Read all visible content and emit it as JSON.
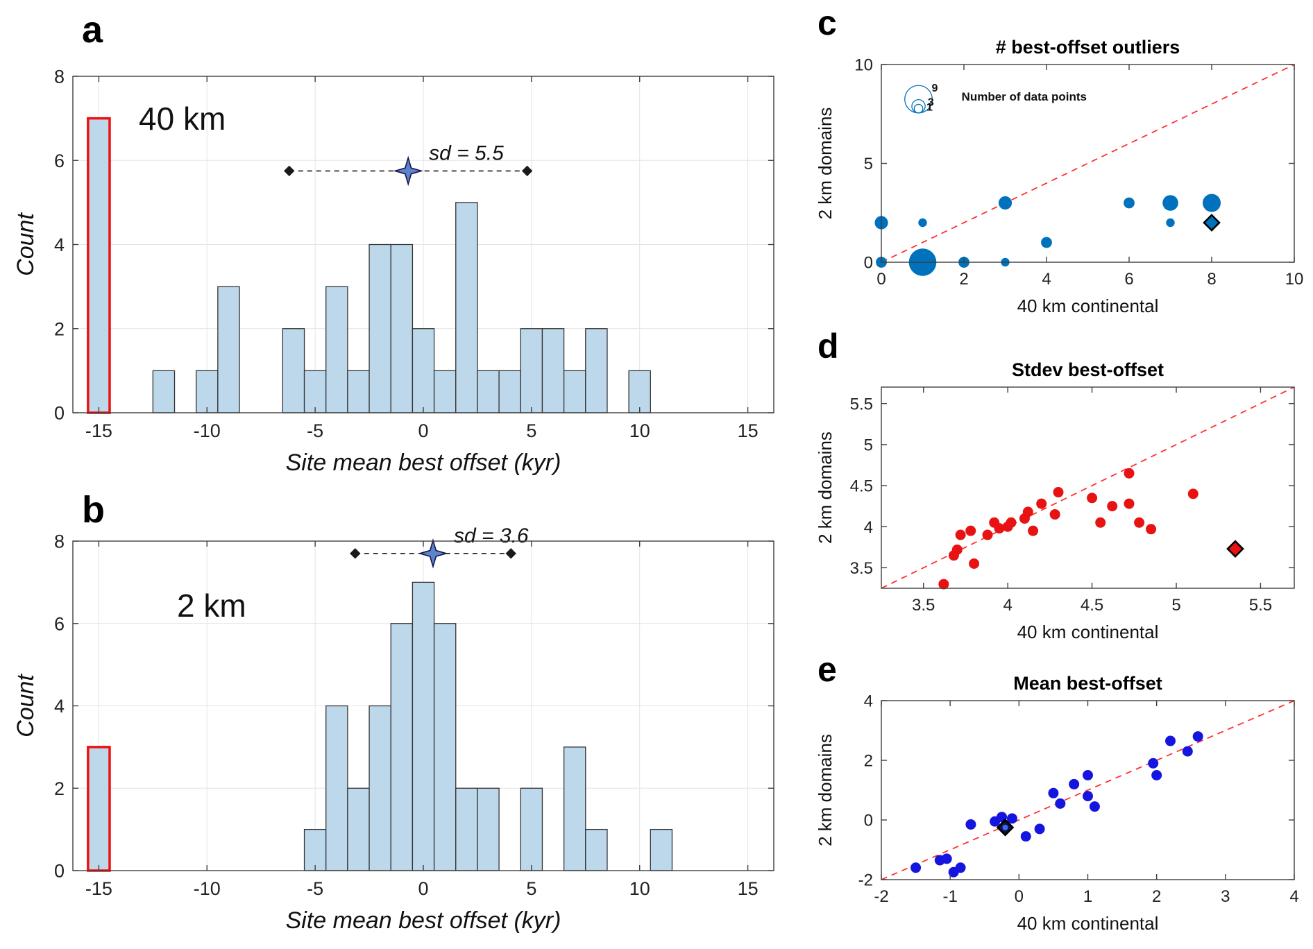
{
  "figure": {
    "background": "#ffffff"
  },
  "chart_data": [
    {
      "panel_letter": "a",
      "type": "histogram",
      "domain_label": "40 km",
      "xlabel": "Site mean best offset (kyr)",
      "ylabel": "Count",
      "xlim": [
        -16.2,
        16.2
      ],
      "ylim": [
        0,
        8
      ],
      "xticks": [
        -15,
        -10,
        -5,
        0,
        5,
        10,
        15
      ],
      "yticks": [
        0,
        2,
        4,
        6,
        8
      ],
      "grid": true,
      "bin_width": 1,
      "bars": [
        {
          "center": -15,
          "count": 7,
          "outlier": true
        },
        {
          "center": -12,
          "count": 1
        },
        {
          "center": -10,
          "count": 1
        },
        {
          "center": -9,
          "count": 3
        },
        {
          "center": -6,
          "count": 2
        },
        {
          "center": -5,
          "count": 1
        },
        {
          "center": -4,
          "count": 3
        },
        {
          "center": -3,
          "count": 1
        },
        {
          "center": -2,
          "count": 4
        },
        {
          "center": -1,
          "count": 4
        },
        {
          "center": 0,
          "count": 2
        },
        {
          "center": 1,
          "count": 1
        },
        {
          "center": 2,
          "count": 5
        },
        {
          "center": 3,
          "count": 1
        },
        {
          "center": 4,
          "count": 1
        },
        {
          "center": 5,
          "count": 2
        },
        {
          "center": 6,
          "count": 2
        },
        {
          "center": 7,
          "count": 1
        },
        {
          "center": 8,
          "count": 2
        },
        {
          "center": 10,
          "count": 1
        }
      ],
      "annotation": {
        "label": "sd = 5.5",
        "center_x": -0.7,
        "y": 5.75,
        "half_width": 5.5
      },
      "colors": {
        "bar_fill": "#BDD8EA",
        "bar_edge": "#333333",
        "outlier_edge": "#F01010",
        "grid": "#E4E4E4",
        "axis": "#3F3F3F",
        "star_fill": "#5C84C8",
        "star_edge": "#14144A",
        "annotation": "#1A1A1A"
      }
    },
    {
      "panel_letter": "b",
      "type": "histogram",
      "domain_label": "2 km",
      "xlabel": "Site mean best offset (kyr)",
      "ylabel": "Count",
      "xlim": [
        -16.2,
        16.2
      ],
      "ylim": [
        0,
        8
      ],
      "xticks": [
        -15,
        -10,
        -5,
        0,
        5,
        10,
        15
      ],
      "yticks": [
        0,
        2,
        4,
        6,
        8
      ],
      "grid": true,
      "bin_width": 1,
      "bars": [
        {
          "center": -15,
          "count": 3,
          "outlier": true
        },
        {
          "center": -5,
          "count": 1
        },
        {
          "center": -4,
          "count": 4
        },
        {
          "center": -3,
          "count": 2
        },
        {
          "center": -2,
          "count": 4
        },
        {
          "center": -1,
          "count": 6
        },
        {
          "center": 0,
          "count": 7
        },
        {
          "center": 1,
          "count": 6
        },
        {
          "center": 2,
          "count": 2
        },
        {
          "center": 3,
          "count": 2
        },
        {
          "center": 5,
          "count": 2
        },
        {
          "center": 7,
          "count": 3
        },
        {
          "center": 8,
          "count": 1
        },
        {
          "center": 11,
          "count": 1
        }
      ],
      "annotation": {
        "label": "sd = 3.6",
        "center_x": 0.45,
        "y": 7.7,
        "half_width": 3.6
      },
      "colors": {
        "bar_fill": "#BDD8EA",
        "bar_edge": "#333333",
        "outlier_edge": "#F01010",
        "grid": "#E4E4E4",
        "axis": "#3F3F3F",
        "star_fill": "#5C84C8",
        "star_edge": "#14144A",
        "annotation": "#1A1A1A"
      }
    },
    {
      "panel_letter": "c",
      "type": "bubble",
      "title": "# best-offset outliers",
      "xlabel": "40 km continental",
      "ylabel": "2 km domains",
      "xlim": [
        0,
        10
      ],
      "ylim": [
        0,
        10
      ],
      "xticks": [
        0,
        2,
        4,
        6,
        8,
        10
      ],
      "yticks": [
        0,
        5,
        10
      ],
      "grid": false,
      "identity_line": true,
      "points": [
        {
          "x": 0,
          "y": 0,
          "n": 2
        },
        {
          "x": 0,
          "y": 2,
          "n": 3
        },
        {
          "x": 1,
          "y": 0,
          "n": 9
        },
        {
          "x": 1,
          "y": 2,
          "n": 1
        },
        {
          "x": 2,
          "y": 0,
          "n": 2
        },
        {
          "x": 3,
          "y": 0,
          "n": 1
        },
        {
          "x": 3,
          "y": 3,
          "n": 3
        },
        {
          "x": 4,
          "y": 1,
          "n": 2
        },
        {
          "x": 6,
          "y": 3,
          "n": 2
        },
        {
          "x": 7,
          "y": 3,
          "n": 4
        },
        {
          "x": 7,
          "y": 2,
          "n": 1
        },
        {
          "x": 8,
          "y": 3,
          "n": 5
        }
      ],
      "special": {
        "x": 8,
        "y": 2,
        "fill": "#0072BD",
        "edge": "#000000"
      },
      "legend": {
        "title": "Number of data points",
        "sizes": [
          9,
          3,
          1
        ],
        "x": 0.9,
        "y": 7.55
      },
      "colors": {
        "axis": "#3F3F3F",
        "identity": "#FF3030",
        "bubble": "#0072BD"
      }
    },
    {
      "panel_letter": "d",
      "type": "scatter",
      "title": "Stdev best-offset",
      "xlabel": "40 km continental",
      "ylabel": "2 km domains",
      "xlim": [
        3.25,
        5.7
      ],
      "ylim": [
        3.25,
        5.7
      ],
      "xticks": [
        3.5,
        4,
        4.5,
        5,
        5.5
      ],
      "yticks": [
        3.5,
        4,
        4.5,
        5,
        5.5
      ],
      "grid": false,
      "identity_line": true,
      "points": [
        [
          3.62,
          3.3
        ],
        [
          3.68,
          3.65
        ],
        [
          3.7,
          3.72
        ],
        [
          3.72,
          3.9
        ],
        [
          3.78,
          3.95
        ],
        [
          3.8,
          3.55
        ],
        [
          3.88,
          3.9
        ],
        [
          3.92,
          4.05
        ],
        [
          3.95,
          3.98
        ],
        [
          4.0,
          4.0
        ],
        [
          4.02,
          4.05
        ],
        [
          4.1,
          4.1
        ],
        [
          4.12,
          4.18
        ],
        [
          4.15,
          3.95
        ],
        [
          4.2,
          4.28
        ],
        [
          4.28,
          4.15
        ],
        [
          4.3,
          4.42
        ],
        [
          4.5,
          4.35
        ],
        [
          4.55,
          4.05
        ],
        [
          4.62,
          4.25
        ],
        [
          4.72,
          4.65
        ],
        [
          4.72,
          4.28
        ],
        [
          4.78,
          4.05
        ],
        [
          4.85,
          3.97
        ],
        [
          5.1,
          4.4
        ]
      ],
      "special": {
        "x": 5.35,
        "y": 3.73,
        "fill": "#E81212",
        "edge": "#000000"
      },
      "colors": {
        "axis": "#3F3F3F",
        "identity": "#FF3030",
        "point": "#E81212"
      }
    },
    {
      "panel_letter": "e",
      "type": "scatter",
      "title": "Mean best-offset",
      "xlabel": "40 km continental",
      "ylabel": "2 km domains",
      "xlim": [
        -2,
        4
      ],
      "ylim": [
        -2,
        4
      ],
      "xticks": [
        -2,
        -1,
        0,
        1,
        2,
        3,
        4
      ],
      "yticks": [
        -2,
        0,
        2,
        4
      ],
      "grid": false,
      "identity_line": true,
      "points": [
        [
          -1.5,
          -1.6
        ],
        [
          -1.15,
          -1.35
        ],
        [
          -1.05,
          -1.3
        ],
        [
          -0.95,
          -1.75
        ],
        [
          -0.85,
          -1.6
        ],
        [
          -0.7,
          -0.15
        ],
        [
          -0.35,
          -0.05
        ],
        [
          -0.25,
          0.1
        ],
        [
          -0.1,
          0.05
        ],
        [
          0.1,
          -0.55
        ],
        [
          0.3,
          -0.3
        ],
        [
          0.5,
          0.9
        ],
        [
          0.6,
          0.55
        ],
        [
          0.8,
          1.2
        ],
        [
          1.0,
          1.5
        ],
        [
          1.0,
          0.8
        ],
        [
          1.1,
          0.45
        ],
        [
          1.95,
          1.9
        ],
        [
          2.0,
          1.5
        ],
        [
          2.2,
          2.65
        ],
        [
          2.45,
          2.3
        ],
        [
          2.6,
          2.8
        ]
      ],
      "special": {
        "x": -0.2,
        "y": -0.25,
        "fill": "#10104A",
        "edge": "#000000",
        "dot": "#3B6BF0"
      },
      "colors": {
        "axis": "#3F3F3F",
        "identity": "#FF3030",
        "point": "#1515E0"
      }
    }
  ]
}
